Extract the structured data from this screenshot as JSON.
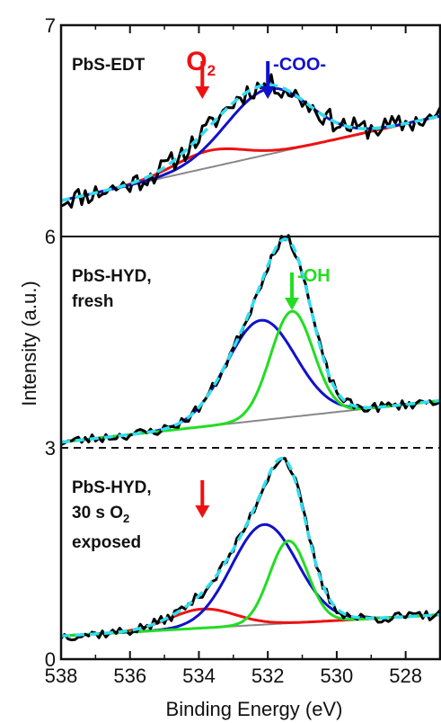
{
  "chart_data": {
    "type": "line",
    "xlabel": "Binding Energy (eV)",
    "ylabel": "Intensity (a.u.)",
    "xlim": [
      538,
      527
    ],
    "x_reversed": true,
    "x_ticks": [
      "538",
      "536",
      "534",
      "532",
      "530",
      "528"
    ],
    "y_ticks": [
      "0",
      "3",
      "6",
      "7"
    ],
    "colors": {
      "data": "#000000",
      "fit": "#33ddee",
      "background": "#888888",
      "O2": "#ee1111",
      "COO": "#1111cc",
      "OH": "#22dd22"
    },
    "panels": [
      {
        "label_lines": [
          "PbS-EDT"
        ],
        "ylim": [
          6,
          7
        ],
        "background": {
          "x": [
            538,
            527
          ],
          "y": [
            6.17,
            6.57
          ]
        },
        "components": [
          {
            "name": "O2",
            "color": "#ee1111",
            "center": 533.7,
            "amplitude": 0.08,
            "width": 1.0
          },
          {
            "name": "-COO-",
            "color": "#1111cc",
            "center": 532.0,
            "amplitude": 0.31,
            "width": 1.2
          }
        ],
        "noise": 0.05,
        "seed": 11,
        "annotations": [
          {
            "text": "O",
            "subscript": "2",
            "x": 533.9,
            "color": "#ee1111"
          },
          {
            "text": "-COO-",
            "x": 532.0,
            "color": "#1111cc"
          }
        ]
      },
      {
        "label_lines": [
          "PbS-HYD,",
          "fresh"
        ],
        "ylim": [
          3,
          6
        ],
        "background": {
          "x": [
            538,
            527
          ],
          "y": [
            3.08,
            3.67
          ]
        },
        "components": [
          {
            "name": "-COO-",
            "color": "#1111cc",
            "center": 532.2,
            "amplitude": 1.42,
            "width": 1.0
          },
          {
            "name": "-OH",
            "color": "#22dd22",
            "center": 531.3,
            "amplitude": 1.5,
            "width": 0.62
          }
        ],
        "noise": 0.07,
        "seed": 23,
        "annotations": [
          {
            "text": "-OH",
            "x": 531.3,
            "color": "#22dd22"
          }
        ]
      },
      {
        "label_lines": [
          "PbS-HYD,",
          "30 s O",
          "exposed"
        ],
        "label_subscript": {
          "line": 1,
          "text": "2"
        },
        "ylim": [
          0,
          3
        ],
        "background": {
          "x": [
            538,
            527
          ],
          "y": [
            0.33,
            0.63
          ]
        },
        "components": [
          {
            "name": "O2",
            "color": "#ee1111",
            "center": 533.9,
            "amplitude": 0.27,
            "width": 0.95
          },
          {
            "name": "-COO-",
            "color": "#1111cc",
            "center": 532.1,
            "amplitude": 1.42,
            "width": 0.95
          },
          {
            "name": "-OH",
            "color": "#22dd22",
            "center": 531.4,
            "amplitude": 1.17,
            "width": 0.55
          }
        ],
        "noise": 0.07,
        "seed": 37,
        "annotations": [
          {
            "text": "",
            "x": 533.9,
            "color": "#ee1111"
          }
        ]
      }
    ]
  }
}
